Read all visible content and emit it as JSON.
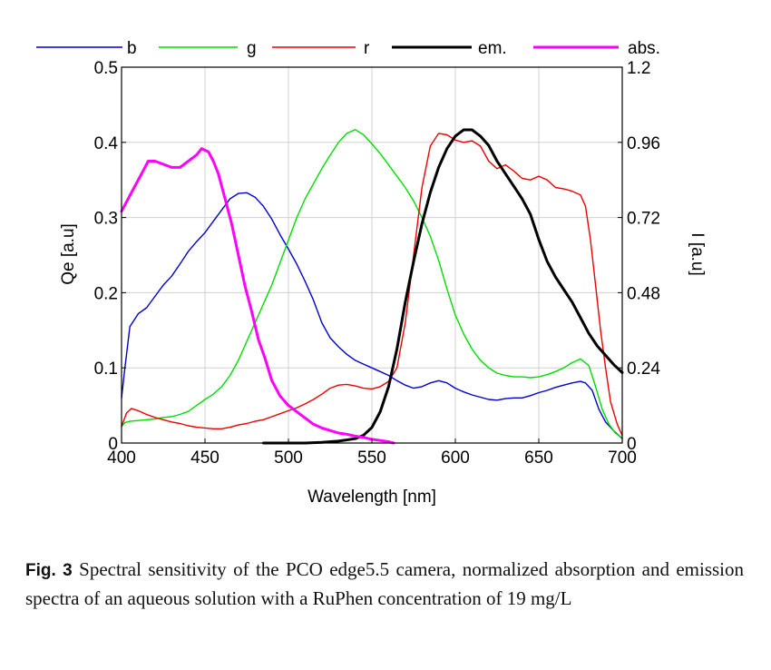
{
  "chart_data": {
    "type": "line",
    "xlabel": "Wavelength [nm]",
    "ylabel_left": "Qe [a.u]",
    "ylabel_right": "I [a.u]",
    "xlim": [
      400,
      700
    ],
    "ylim_left": [
      0,
      0.5
    ],
    "ylim_right": [
      0,
      1.2
    ],
    "grid": true,
    "legend_position": "top",
    "x_ticks": [
      "400",
      "450",
      "500",
      "550",
      "600",
      "650",
      "700"
    ],
    "y_ticks_left": [
      "0",
      "0.1",
      "0.2",
      "0.3",
      "0.4",
      "0.5"
    ],
    "y_ticks_right": [
      "0",
      "0.24",
      "0.48",
      "0.72",
      "0.96",
      "1.2"
    ],
    "series": [
      {
        "name": "b",
        "axis": "left",
        "color": "#0000cc",
        "width": 1.4,
        "points": [
          [
            400,
            0.06
          ],
          [
            402,
            0.1
          ],
          [
            405,
            0.155
          ],
          [
            410,
            0.172
          ],
          [
            415,
            0.18
          ],
          [
            420,
            0.195
          ],
          [
            425,
            0.21
          ],
          [
            430,
            0.222
          ],
          [
            435,
            0.238
          ],
          [
            440,
            0.255
          ],
          [
            445,
            0.268
          ],
          [
            450,
            0.28
          ],
          [
            455,
            0.295
          ],
          [
            460,
            0.31
          ],
          [
            465,
            0.325
          ],
          [
            470,
            0.332
          ],
          [
            475,
            0.333
          ],
          [
            480,
            0.327
          ],
          [
            485,
            0.315
          ],
          [
            490,
            0.298
          ],
          [
            495,
            0.277
          ],
          [
            500,
            0.258
          ],
          [
            505,
            0.238
          ],
          [
            510,
            0.215
          ],
          [
            515,
            0.19
          ],
          [
            520,
            0.16
          ],
          [
            525,
            0.14
          ],
          [
            530,
            0.128
          ],
          [
            535,
            0.118
          ],
          [
            540,
            0.11
          ],
          [
            545,
            0.105
          ],
          [
            550,
            0.1
          ],
          [
            555,
            0.095
          ],
          [
            560,
            0.09
          ],
          [
            565,
            0.083
          ],
          [
            570,
            0.077
          ],
          [
            575,
            0.073
          ],
          [
            580,
            0.075
          ],
          [
            585,
            0.08
          ],
          [
            590,
            0.083
          ],
          [
            595,
            0.08
          ],
          [
            600,
            0.073
          ],
          [
            605,
            0.068
          ],
          [
            610,
            0.064
          ],
          [
            615,
            0.061
          ],
          [
            620,
            0.058
          ],
          [
            625,
            0.057
          ],
          [
            630,
            0.059
          ],
          [
            635,
            0.06
          ],
          [
            640,
            0.06
          ],
          [
            645,
            0.063
          ],
          [
            650,
            0.067
          ],
          [
            655,
            0.07
          ],
          [
            660,
            0.074
          ],
          [
            665,
            0.077
          ],
          [
            670,
            0.08
          ],
          [
            675,
            0.082
          ],
          [
            678,
            0.08
          ],
          [
            682,
            0.07
          ],
          [
            686,
            0.045
          ],
          [
            690,
            0.028
          ],
          [
            695,
            0.016
          ],
          [
            700,
            0.006
          ]
        ]
      },
      {
        "name": "g",
        "axis": "left",
        "color": "#00dd00",
        "width": 1.4,
        "points": [
          [
            400,
            0.022
          ],
          [
            402,
            0.027
          ],
          [
            405,
            0.029
          ],
          [
            410,
            0.03
          ],
          [
            415,
            0.031
          ],
          [
            420,
            0.032
          ],
          [
            425,
            0.034
          ],
          [
            430,
            0.035
          ],
          [
            435,
            0.038
          ],
          [
            440,
            0.042
          ],
          [
            445,
            0.05
          ],
          [
            450,
            0.058
          ],
          [
            455,
            0.065
          ],
          [
            460,
            0.075
          ],
          [
            465,
            0.09
          ],
          [
            470,
            0.11
          ],
          [
            475,
            0.135
          ],
          [
            480,
            0.16
          ],
          [
            485,
            0.185
          ],
          [
            490,
            0.21
          ],
          [
            495,
            0.24
          ],
          [
            500,
            0.27
          ],
          [
            505,
            0.3
          ],
          [
            510,
            0.325
          ],
          [
            515,
            0.345
          ],
          [
            520,
            0.365
          ],
          [
            525,
            0.383
          ],
          [
            530,
            0.4
          ],
          [
            535,
            0.412
          ],
          [
            540,
            0.417
          ],
          [
            545,
            0.41
          ],
          [
            550,
            0.398
          ],
          [
            555,
            0.385
          ],
          [
            560,
            0.37
          ],
          [
            565,
            0.355
          ],
          [
            570,
            0.34
          ],
          [
            575,
            0.322
          ],
          [
            580,
            0.3
          ],
          [
            585,
            0.275
          ],
          [
            590,
            0.243
          ],
          [
            595,
            0.205
          ],
          [
            600,
            0.17
          ],
          [
            605,
            0.145
          ],
          [
            610,
            0.125
          ],
          [
            615,
            0.11
          ],
          [
            620,
            0.1
          ],
          [
            625,
            0.093
          ],
          [
            630,
            0.09
          ],
          [
            635,
            0.088
          ],
          [
            640,
            0.088
          ],
          [
            645,
            0.087
          ],
          [
            650,
            0.088
          ],
          [
            655,
            0.091
          ],
          [
            660,
            0.095
          ],
          [
            665,
            0.1
          ],
          [
            670,
            0.107
          ],
          [
            675,
            0.112
          ],
          [
            680,
            0.103
          ],
          [
            684,
            0.075
          ],
          [
            688,
            0.045
          ],
          [
            692,
            0.025
          ],
          [
            696,
            0.013
          ],
          [
            700,
            0.007
          ]
        ]
      },
      {
        "name": "r",
        "axis": "left",
        "color": "#ee0000",
        "width": 1.4,
        "points": [
          [
            400,
            0.022
          ],
          [
            403,
            0.04
          ],
          [
            406,
            0.046
          ],
          [
            410,
            0.043
          ],
          [
            415,
            0.038
          ],
          [
            420,
            0.034
          ],
          [
            425,
            0.031
          ],
          [
            430,
            0.028
          ],
          [
            435,
            0.026
          ],
          [
            440,
            0.023
          ],
          [
            445,
            0.021
          ],
          [
            450,
            0.02
          ],
          [
            455,
            0.019
          ],
          [
            460,
            0.019
          ],
          [
            465,
            0.021
          ],
          [
            470,
            0.024
          ],
          [
            475,
            0.026
          ],
          [
            480,
            0.029
          ],
          [
            485,
            0.031
          ],
          [
            490,
            0.035
          ],
          [
            495,
            0.039
          ],
          [
            500,
            0.043
          ],
          [
            505,
            0.047
          ],
          [
            510,
            0.052
          ],
          [
            515,
            0.058
          ],
          [
            520,
            0.065
          ],
          [
            525,
            0.073
          ],
          [
            530,
            0.077
          ],
          [
            535,
            0.078
          ],
          [
            540,
            0.076
          ],
          [
            545,
            0.073
          ],
          [
            550,
            0.072
          ],
          [
            555,
            0.075
          ],
          [
            560,
            0.082
          ],
          [
            565,
            0.1
          ],
          [
            570,
            0.16
          ],
          [
            575,
            0.25
          ],
          [
            580,
            0.34
          ],
          [
            585,
            0.395
          ],
          [
            590,
            0.412
          ],
          [
            595,
            0.41
          ],
          [
            600,
            0.403
          ],
          [
            605,
            0.4
          ],
          [
            610,
            0.402
          ],
          [
            615,
            0.395
          ],
          [
            620,
            0.375
          ],
          [
            625,
            0.365
          ],
          [
            630,
            0.37
          ],
          [
            635,
            0.362
          ],
          [
            640,
            0.352
          ],
          [
            645,
            0.35
          ],
          [
            650,
            0.355
          ],
          [
            655,
            0.35
          ],
          [
            660,
            0.34
          ],
          [
            665,
            0.338
          ],
          [
            670,
            0.335
          ],
          [
            675,
            0.33
          ],
          [
            678,
            0.315
          ],
          [
            681,
            0.27
          ],
          [
            684,
            0.21
          ],
          [
            687,
            0.15
          ],
          [
            690,
            0.1
          ],
          [
            693,
            0.055
          ],
          [
            697,
            0.025
          ],
          [
            700,
            0.01
          ]
        ]
      },
      {
        "name": "em.",
        "axis": "right",
        "color": "#000000",
        "width": 3,
        "points": [
          [
            485,
            0
          ],
          [
            500,
            0
          ],
          [
            510,
            0
          ],
          [
            520,
            0.002
          ],
          [
            530,
            0.006
          ],
          [
            540,
            0.014
          ],
          [
            545,
            0.025
          ],
          [
            550,
            0.05
          ],
          [
            555,
            0.1
          ],
          [
            560,
            0.18
          ],
          [
            565,
            0.3
          ],
          [
            570,
            0.45
          ],
          [
            575,
            0.58
          ],
          [
            580,
            0.7
          ],
          [
            585,
            0.8
          ],
          [
            590,
            0.88
          ],
          [
            595,
            0.94
          ],
          [
            600,
            0.98
          ],
          [
            605,
            1.0
          ],
          [
            610,
            1.0
          ],
          [
            615,
            0.98
          ],
          [
            620,
            0.95
          ],
          [
            625,
            0.9
          ],
          [
            630,
            0.86
          ],
          [
            635,
            0.82
          ],
          [
            640,
            0.78
          ],
          [
            645,
            0.73
          ],
          [
            650,
            0.65
          ],
          [
            655,
            0.58
          ],
          [
            660,
            0.53
          ],
          [
            665,
            0.49
          ],
          [
            670,
            0.45
          ],
          [
            675,
            0.4
          ],
          [
            680,
            0.35
          ],
          [
            685,
            0.31
          ],
          [
            690,
            0.28
          ],
          [
            695,
            0.25
          ],
          [
            700,
            0.225
          ]
        ]
      },
      {
        "name": "abs.",
        "axis": "right",
        "color": "#ff00ff",
        "width": 3,
        "points": [
          [
            400,
            0.74
          ],
          [
            403,
            0.77
          ],
          [
            406,
            0.8
          ],
          [
            410,
            0.84
          ],
          [
            413,
            0.87
          ],
          [
            416,
            0.9
          ],
          [
            420,
            0.9
          ],
          [
            425,
            0.89
          ],
          [
            430,
            0.88
          ],
          [
            435,
            0.88
          ],
          [
            440,
            0.9
          ],
          [
            445,
            0.92
          ],
          [
            448,
            0.94
          ],
          [
            452,
            0.93
          ],
          [
            455,
            0.9
          ],
          [
            458,
            0.86
          ],
          [
            462,
            0.78
          ],
          [
            466,
            0.7
          ],
          [
            470,
            0.6
          ],
          [
            474,
            0.5
          ],
          [
            478,
            0.42
          ],
          [
            482,
            0.33
          ],
          [
            486,
            0.27
          ],
          [
            490,
            0.2
          ],
          [
            495,
            0.15
          ],
          [
            500,
            0.12
          ],
          [
            505,
            0.1
          ],
          [
            510,
            0.08
          ],
          [
            515,
            0.06
          ],
          [
            520,
            0.048
          ],
          [
            525,
            0.04
          ],
          [
            530,
            0.032
          ],
          [
            535,
            0.028
          ],
          [
            540,
            0.022
          ],
          [
            545,
            0.018
          ],
          [
            550,
            0.012
          ],
          [
            555,
            0.008
          ],
          [
            560,
            0.004
          ],
          [
            563,
            0
          ]
        ]
      }
    ]
  },
  "caption": {
    "label": "Fig. 3",
    "text": "Spectral sensitivity of the PCO edge5.5 camera, normalized absorption and emission spectra of an aqueous solution with a RuPhen concentration of 19 mg/L"
  }
}
